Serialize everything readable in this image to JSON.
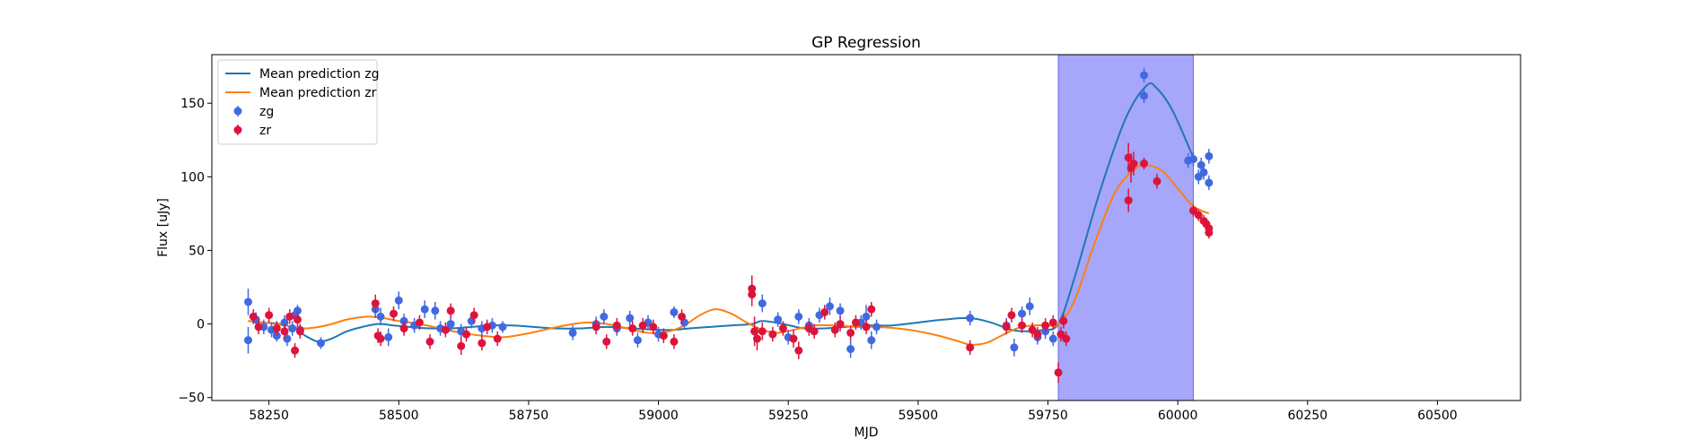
{
  "chart_data": {
    "type": "line",
    "title": "GP Regression",
    "xlabel": "MJD",
    "ylabel": "Flux [uJy]",
    "xlim": [
      58140,
      60660
    ],
    "ylim": [
      -52,
      183
    ],
    "xticks": [
      58250,
      58500,
      58750,
      59000,
      59250,
      59500,
      59750,
      60000,
      60250,
      60500
    ],
    "yticks": [
      -50,
      0,
      50,
      100,
      150
    ],
    "grid": false,
    "legend_position": "top-left",
    "shaded_region": {
      "x_start": 59770,
      "x_end": 60030,
      "color": "#a6a6fb",
      "edge": "#6b6bf0"
    },
    "series": [
      {
        "name": "Mean prediction zg",
        "kind": "line",
        "color": "#1f77b4",
        "x": [
          58210,
          58240,
          58270,
          58300,
          58320,
          58345,
          58370,
          58400,
          58430,
          58460,
          58490,
          58520,
          58560,
          58600,
          58640,
          58680,
          58720,
          58760,
          58800,
          58850,
          58900,
          58950,
          59000,
          59030,
          59060,
          59100,
          59140,
          59180,
          59200,
          59240,
          59280,
          59320,
          59360,
          59400,
          59450,
          59500,
          59550,
          59600,
          59640,
          59680,
          59710,
          59740,
          59770,
          59800,
          59850,
          59900,
          59940,
          59960,
          59990,
          60030
        ],
        "y": [
          2,
          1,
          0,
          -3,
          -8,
          -12,
          -10,
          -5,
          -2,
          0,
          -1,
          -2,
          -3,
          -3,
          -2,
          -1,
          -1,
          -2,
          -3,
          -3,
          -2,
          -3,
          -4,
          -4,
          -3,
          -2,
          -1,
          0,
          2,
          0,
          -3,
          -3,
          -2,
          -1,
          -1,
          1,
          3,
          4,
          1,
          -4,
          -5,
          -4,
          0,
          30,
          90,
          140,
          162,
          160,
          145,
          113
        ]
      },
      {
        "name": "Mean prediction zr",
        "kind": "line",
        "color": "#ff7f0e",
        "x": [
          58210,
          58240,
          58280,
          58320,
          58360,
          58400,
          58440,
          58470,
          58500,
          58540,
          58580,
          58620,
          58660,
          58700,
          58740,
          58780,
          58820,
          58860,
          58900,
          58940,
          58980,
          59020,
          59050,
          59080,
          59110,
          59140,
          59170,
          59200,
          59230,
          59260,
          59300,
          59340,
          59380,
          59420,
          59460,
          59500,
          59540,
          59580,
          59600,
          59630,
          59660,
          59690,
          59720,
          59750,
          59770,
          59800,
          59840,
          59880,
          59920,
          59940,
          59970,
          60000,
          60030,
          60060
        ],
        "y": [
          2,
          1,
          -1,
          -3,
          -1,
          3,
          5,
          4,
          2,
          0,
          -3,
          -6,
          -8,
          -9,
          -7,
          -4,
          -1,
          1,
          0,
          -3,
          -6,
          -5,
          -1,
          6,
          10,
          7,
          1,
          -4,
          -6,
          -4,
          -1,
          -1,
          -2,
          -2,
          -3,
          -5,
          -8,
          -12,
          -14,
          -13,
          -8,
          -3,
          -1,
          -1,
          0,
          15,
          55,
          90,
          106,
          108,
          104,
          92,
          80,
          75
        ]
      },
      {
        "name": "zg",
        "kind": "errorbar",
        "color": "#4169e1",
        "points": [
          [
            58210,
            15,
            9
          ],
          [
            58210,
            -11,
            9
          ],
          [
            58225,
            3,
            5
          ],
          [
            58240,
            -2,
            5
          ],
          [
            58255,
            -4,
            5
          ],
          [
            58265,
            -8,
            4
          ],
          [
            58280,
            1,
            5
          ],
          [
            58295,
            -3,
            5
          ],
          [
            58300,
            6,
            4
          ],
          [
            58305,
            9,
            4
          ],
          [
            58285,
            -10,
            5
          ],
          [
            58310,
            -4,
            4
          ],
          [
            58350,
            -13,
            4
          ],
          [
            58455,
            10,
            6
          ],
          [
            58465,
            5,
            6
          ],
          [
            58480,
            -9,
            6
          ],
          [
            58500,
            16,
            6
          ],
          [
            58510,
            2,
            5
          ],
          [
            58530,
            -1,
            5
          ],
          [
            58550,
            10,
            6
          ],
          [
            58570,
            9,
            6
          ],
          [
            58580,
            -3,
            5
          ],
          [
            58600,
            0,
            5
          ],
          [
            58620,
            -5,
            5
          ],
          [
            58640,
            2,
            5
          ],
          [
            58660,
            -3,
            5
          ],
          [
            58680,
            -1,
            5
          ],
          [
            58700,
            -2,
            4
          ],
          [
            58835,
            -6,
            5
          ],
          [
            58880,
            0,
            5
          ],
          [
            58895,
            5,
            5
          ],
          [
            58920,
            -3,
            5
          ],
          [
            58945,
            4,
            5
          ],
          [
            58960,
            -11,
            5
          ],
          [
            58980,
            1,
            5
          ],
          [
            59000,
            -7,
            5
          ],
          [
            59030,
            8,
            4
          ],
          [
            59050,
            1,
            4
          ],
          [
            59200,
            14,
            6
          ],
          [
            59230,
            3,
            5
          ],
          [
            59250,
            -9,
            5
          ],
          [
            59270,
            5,
            5
          ],
          [
            59290,
            -1,
            5
          ],
          [
            59310,
            6,
            5
          ],
          [
            59330,
            12,
            6
          ],
          [
            59350,
            9,
            5
          ],
          [
            59370,
            -17,
            6
          ],
          [
            59390,
            1,
            5
          ],
          [
            59400,
            5,
            8
          ],
          [
            59410,
            -11,
            6
          ],
          [
            59420,
            -2,
            5
          ],
          [
            59600,
            4,
            5
          ],
          [
            59670,
            -1,
            5
          ],
          [
            59685,
            -16,
            6
          ],
          [
            59700,
            7,
            5
          ],
          [
            59715,
            12,
            6
          ],
          [
            59730,
            -9,
            5
          ],
          [
            59745,
            -5,
            5
          ],
          [
            59760,
            -10,
            5
          ],
          [
            59935,
            169,
            5
          ],
          [
            59935,
            155,
            5
          ],
          [
            60020,
            111,
            5
          ],
          [
            60030,
            112,
            5
          ],
          [
            60040,
            100,
            5
          ],
          [
            60045,
            108,
            5
          ],
          [
            60050,
            103,
            5
          ],
          [
            60060,
            96,
            5
          ],
          [
            60060,
            114,
            5
          ]
        ]
      },
      {
        "name": "zr",
        "kind": "errorbar",
        "color": "#dc143c",
        "points": [
          [
            58220,
            5,
            5
          ],
          [
            58230,
            -2,
            5
          ],
          [
            58250,
            6,
            5
          ],
          [
            58265,
            -3,
            5
          ],
          [
            58280,
            -5,
            5
          ],
          [
            58290,
            5,
            5
          ],
          [
            58300,
            -18,
            5
          ],
          [
            58305,
            3,
            5
          ],
          [
            58310,
            -5,
            5
          ],
          [
            58455,
            14,
            6
          ],
          [
            58460,
            -8,
            5
          ],
          [
            58465,
            -10,
            5
          ],
          [
            58490,
            7,
            5
          ],
          [
            58510,
            -3,
            5
          ],
          [
            58540,
            1,
            5
          ],
          [
            58560,
            -12,
            5
          ],
          [
            58590,
            -4,
            5
          ],
          [
            58600,
            9,
            5
          ],
          [
            58620,
            -15,
            6
          ],
          [
            58630,
            -7,
            5
          ],
          [
            58645,
            6,
            5
          ],
          [
            58660,
            -13,
            5
          ],
          [
            58670,
            -2,
            5
          ],
          [
            58690,
            -10,
            5
          ],
          [
            58880,
            -2,
            5
          ],
          [
            58900,
            -12,
            5
          ],
          [
            58920,
            -1,
            5
          ],
          [
            58950,
            -3,
            5
          ],
          [
            58970,
            -1,
            5
          ],
          [
            58990,
            -2,
            5
          ],
          [
            59010,
            -8,
            5
          ],
          [
            59030,
            -12,
            5
          ],
          [
            59045,
            5,
            5
          ],
          [
            59180,
            20,
            8
          ],
          [
            59180,
            24,
            9
          ],
          [
            59185,
            -5,
            10
          ],
          [
            59190,
            -10,
            8
          ],
          [
            59200,
            -5,
            6
          ],
          [
            59220,
            -7,
            5
          ],
          [
            59240,
            -3,
            5
          ],
          [
            59260,
            -10,
            6
          ],
          [
            59270,
            -18,
            6
          ],
          [
            59290,
            -3,
            5
          ],
          [
            59300,
            -5,
            5
          ],
          [
            59320,
            8,
            5
          ],
          [
            59340,
            -4,
            5
          ],
          [
            59350,
            0,
            5
          ],
          [
            59370,
            -6,
            5
          ],
          [
            59380,
            1,
            5
          ],
          [
            59400,
            -2,
            5
          ],
          [
            59410,
            10,
            5
          ],
          [
            59600,
            -16,
            5
          ],
          [
            59670,
            -2,
            5
          ],
          [
            59680,
            6,
            5
          ],
          [
            59700,
            -1,
            5
          ],
          [
            59720,
            -4,
            5
          ],
          [
            59730,
            -7,
            5
          ],
          [
            59745,
            -1,
            5
          ],
          [
            59760,
            1,
            5
          ],
          [
            59770,
            -33,
            7
          ],
          [
            59775,
            -7,
            5
          ],
          [
            59780,
            2,
            5
          ],
          [
            59785,
            -10,
            5
          ],
          [
            59905,
            113,
            10
          ],
          [
            59910,
            106,
            10
          ],
          [
            59905,
            84,
            8
          ],
          [
            59915,
            109,
            8
          ],
          [
            59935,
            109,
            4
          ],
          [
            59960,
            97,
            5
          ],
          [
            60030,
            77,
            4
          ],
          [
            60040,
            74,
            4
          ],
          [
            60050,
            70,
            4
          ],
          [
            60055,
            68,
            4
          ],
          [
            60060,
            65,
            4
          ],
          [
            60060,
            62,
            4
          ]
        ]
      }
    ]
  }
}
